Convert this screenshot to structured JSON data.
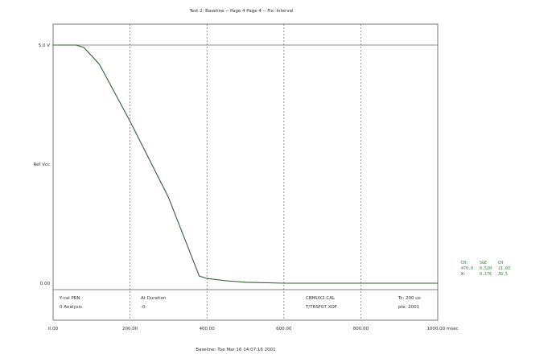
{
  "chart_data": {
    "type": "line",
    "title": "Test 2: Baseline -- Page 4      Page 4 -- Fix: Interval",
    "footer": "Baseline:   Tue Mar 16 14:07:16 2001",
    "xlim": [
      0,
      1000
    ],
    "ylim": [
      0,
      1
    ],
    "x_ticks": [
      {
        "value": 0,
        "label": "0.00"
      },
      {
        "value": 200,
        "label": "200.00"
      },
      {
        "value": 400,
        "label": "400.00"
      },
      {
        "value": 600,
        "label": "600.00"
      },
      {
        "value": 800,
        "label": "800.00"
      },
      {
        "value": 1000,
        "label": "1000.00 msec"
      }
    ],
    "y_ticks": [
      {
        "value": 0,
        "label": "0.00"
      },
      {
        "value": 0.5,
        "label": "Ref Vcc"
      },
      {
        "value": 1,
        "label": "5.0 V"
      }
    ],
    "series": [
      {
        "x": [
          0,
          60,
          80,
          120,
          200,
          300,
          380,
          390,
          400,
          450,
          500,
          600,
          700,
          800,
          900,
          1000
        ],
        "y": [
          1.0,
          1.0,
          0.99,
          0.92,
          0.68,
          0.36,
          0.03,
          0.025,
          0.02,
          0.01,
          0.004,
          0.0,
          0.0,
          0.0,
          0.0,
          0.0
        ]
      }
    ],
    "info_labels": [
      {
        "text": "Y-cal PRN",
        "col": 0,
        "row": 0
      },
      {
        "text": "0  Analysis",
        "col": 0,
        "row": 1
      },
      {
        "text": "At Duration",
        "col": 1,
        "row": 0
      },
      {
        "text": "-0-",
        "col": 1,
        "row": 1
      },
      {
        "text": "CBMUX2.CAL",
        "col": 2,
        "row": 0
      },
      {
        "text": "T/TRSF07.XDF",
        "col": 2,
        "row": 1
      },
      {
        "text": "Tc: 200 us",
        "col": 3,
        "row": 0
      },
      {
        "text": "pts: 2001",
        "col": 3,
        "row": 1
      }
    ],
    "side_readout": [
      [
        "CH:",
        "SGE",
        "CH"
      ],
      [
        "470.0",
        "0.520",
        "21.03"
      ],
      [
        "W:",
        "0.176",
        "39.5"
      ]
    ]
  }
}
